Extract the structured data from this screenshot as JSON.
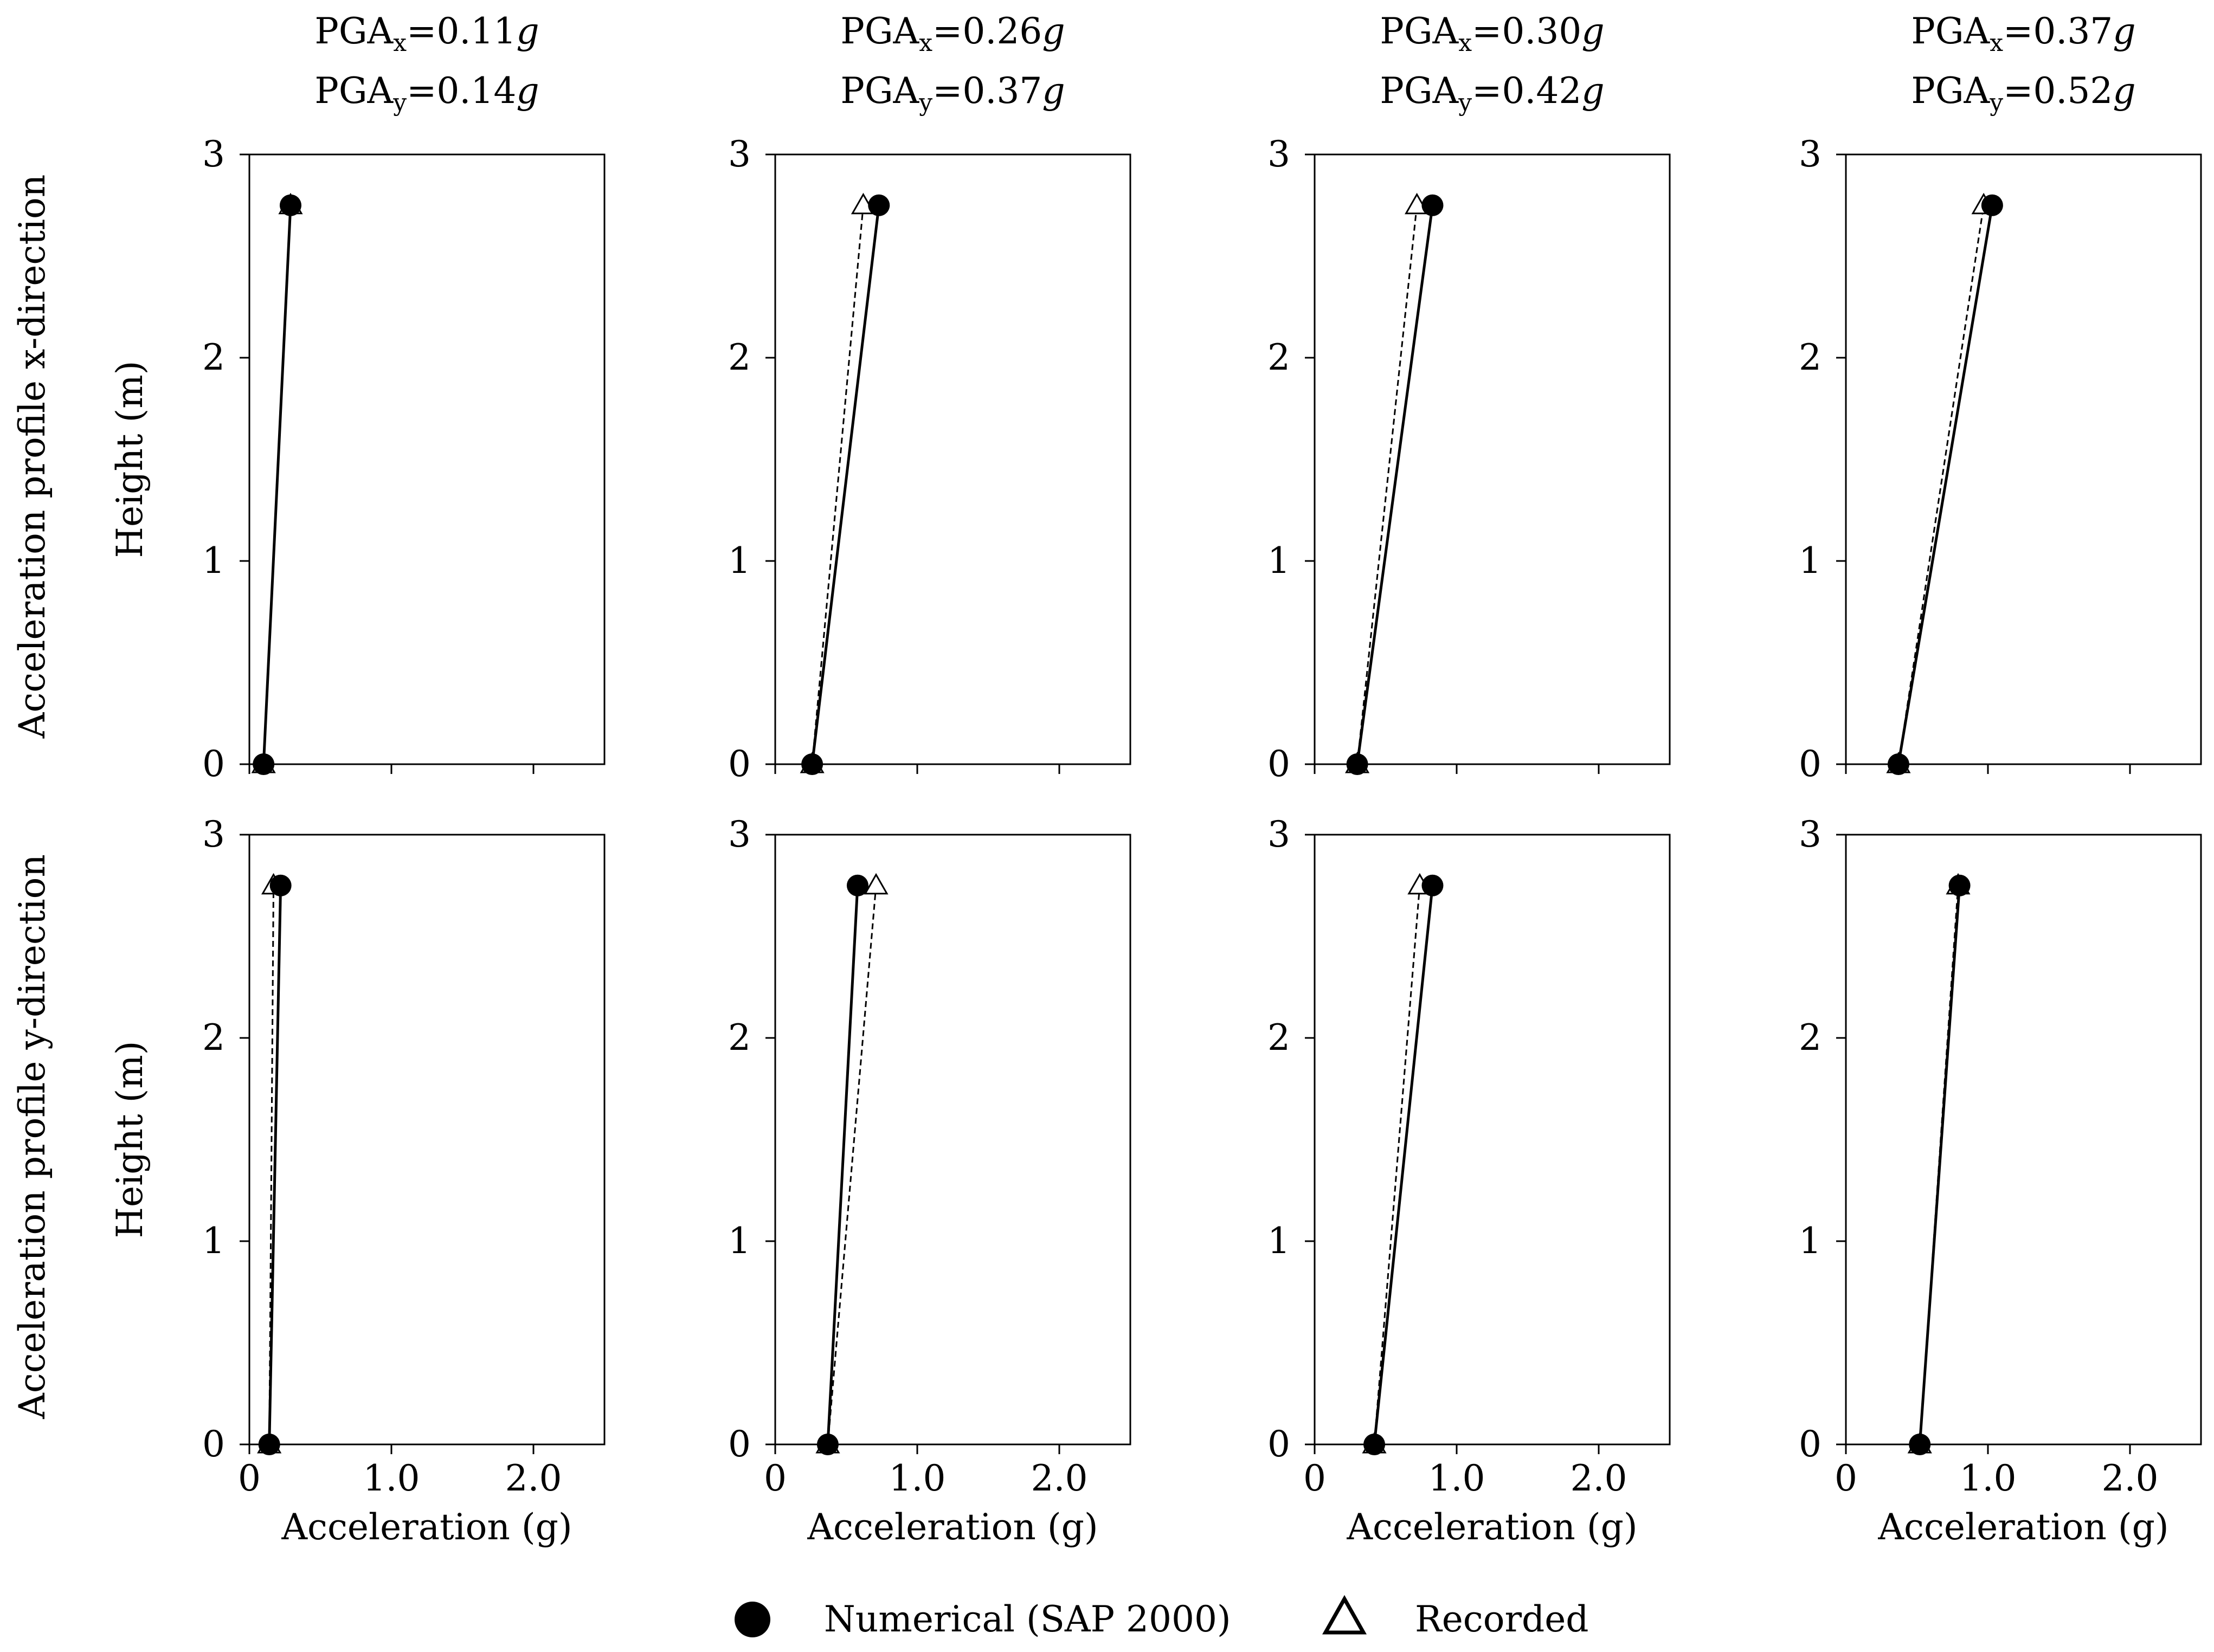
{
  "figure": {
    "row_labels": [
      "Acceleration profile x-direction",
      "Acceleration profile y-direction"
    ],
    "legend": [
      {
        "name": "Numerical (SAP 2000)",
        "marker": "filled-circle",
        "line": "solid"
      },
      {
        "name": "Recorded",
        "marker": "hollow-triangle",
        "line": "dashed"
      }
    ],
    "colors": {
      "ink": "#000000",
      "background": "#ffffff"
    }
  },
  "chart_data": [
    {
      "type": "line",
      "panel": "row1-col1",
      "title_lines": [
        "PGA",
        "x",
        "=0.11",
        "g",
        "PGA",
        "y",
        "=0.14",
        "g"
      ],
      "xlabel": "",
      "ylabel": "Height (m)",
      "xlim": [
        0,
        2.5
      ],
      "ylim": [
        0,
        3
      ],
      "xticks": [
        0,
        1.0,
        2.0
      ],
      "xtick_labels": [],
      "yticks": [
        0,
        1,
        2,
        3
      ],
      "ytick_labels": [
        "0",
        "1",
        "2",
        "3"
      ],
      "series": [
        {
          "name": "Numerical (SAP 2000)",
          "x": [
            0.1,
            0.29
          ],
          "y": [
            0,
            2.75
          ]
        },
        {
          "name": "Recorded",
          "x": [
            0.1,
            0.29
          ],
          "y": [
            0,
            2.75
          ]
        }
      ]
    },
    {
      "type": "line",
      "panel": "row1-col2",
      "title_lines": [
        "PGA",
        "x",
        "=0.26",
        "g",
        "PGA",
        "y",
        "=0.37",
        "g"
      ],
      "xlabel": "",
      "ylabel": "",
      "xlim": [
        0,
        2.5
      ],
      "ylim": [
        0,
        3
      ],
      "xticks": [
        0,
        1.0,
        2.0
      ],
      "xtick_labels": [],
      "yticks": [
        0,
        1,
        2,
        3
      ],
      "ytick_labels": [
        "0",
        "1",
        "2",
        "3"
      ],
      "series": [
        {
          "name": "Numerical (SAP 2000)",
          "x": [
            0.26,
            0.73
          ],
          "y": [
            0,
            2.75
          ]
        },
        {
          "name": "Recorded",
          "x": [
            0.26,
            0.62
          ],
          "y": [
            0,
            2.75
          ]
        }
      ]
    },
    {
      "type": "line",
      "panel": "row1-col3",
      "title_lines": [
        "PGA",
        "x",
        "=0.30",
        "g",
        "PGA",
        "y",
        "=0.42",
        "g"
      ],
      "xlabel": "",
      "ylabel": "",
      "xlim": [
        0,
        2.5
      ],
      "ylim": [
        0,
        3
      ],
      "xticks": [
        0,
        1.0,
        2.0
      ],
      "xtick_labels": [],
      "yticks": [
        0,
        1,
        2,
        3
      ],
      "ytick_labels": [
        "0",
        "1",
        "2",
        "3"
      ],
      "series": [
        {
          "name": "Numerical (SAP 2000)",
          "x": [
            0.3,
            0.83
          ],
          "y": [
            0,
            2.75
          ]
        },
        {
          "name": "Recorded",
          "x": [
            0.3,
            0.72
          ],
          "y": [
            0,
            2.75
          ]
        }
      ]
    },
    {
      "type": "line",
      "panel": "row1-col4",
      "title_lines": [
        "PGA",
        "x",
        "=0.37",
        "g",
        "PGA",
        "y",
        "=0.52",
        "g"
      ],
      "xlabel": "",
      "ylabel": "",
      "xlim": [
        0,
        2.5
      ],
      "ylim": [
        0,
        3
      ],
      "xticks": [
        0,
        1.0,
        2.0
      ],
      "xtick_labels": [],
      "yticks": [
        0,
        1,
        2,
        3
      ],
      "ytick_labels": [
        "0",
        "1",
        "2",
        "3"
      ],
      "series": [
        {
          "name": "Numerical (SAP 2000)",
          "x": [
            0.37,
            1.03
          ],
          "y": [
            0,
            2.75
          ]
        },
        {
          "name": "Recorded",
          "x": [
            0.37,
            0.97
          ],
          "y": [
            0,
            2.75
          ]
        }
      ]
    },
    {
      "type": "line",
      "panel": "row2-col1",
      "title_lines": [],
      "xlabel": "Acceleration (g)",
      "ylabel": "Height (m)",
      "xlim": [
        0,
        2.5
      ],
      "ylim": [
        0,
        3
      ],
      "xticks": [
        0,
        1.0,
        2.0
      ],
      "xtick_labels": [
        "0",
        "1.0",
        "2.0"
      ],
      "yticks": [
        0,
        1,
        2,
        3
      ],
      "ytick_labels": [
        "0",
        "1",
        "2",
        "3"
      ],
      "series": [
        {
          "name": "Numerical (SAP 2000)",
          "x": [
            0.14,
            0.22
          ],
          "y": [
            0,
            2.75
          ]
        },
        {
          "name": "Recorded",
          "x": [
            0.14,
            0.17
          ],
          "y": [
            0,
            2.75
          ]
        }
      ]
    },
    {
      "type": "line",
      "panel": "row2-col2",
      "title_lines": [],
      "xlabel": "Acceleration (g)",
      "ylabel": "",
      "xlim": [
        0,
        2.5
      ],
      "ylim": [
        0,
        3
      ],
      "xticks": [
        0,
        1.0,
        2.0
      ],
      "xtick_labels": [
        "0",
        "1.0",
        "2.0"
      ],
      "yticks": [
        0,
        1,
        2,
        3
      ],
      "ytick_labels": [
        "0",
        "1",
        "2",
        "3"
      ],
      "series": [
        {
          "name": "Numerical (SAP 2000)",
          "x": [
            0.37,
            0.58
          ],
          "y": [
            0,
            2.75
          ]
        },
        {
          "name": "Recorded",
          "x": [
            0.37,
            0.71
          ],
          "y": [
            0,
            2.75
          ]
        }
      ]
    },
    {
      "type": "line",
      "panel": "row2-col3",
      "title_lines": [],
      "xlabel": "Acceleration (g)",
      "ylabel": "",
      "xlim": [
        0,
        2.5
      ],
      "ylim": [
        0,
        3
      ],
      "xticks": [
        0,
        1.0,
        2.0
      ],
      "xtick_labels": [
        "0",
        "1.0",
        "2.0"
      ],
      "yticks": [
        0,
        1,
        2,
        3
      ],
      "ytick_labels": [
        "0",
        "1",
        "2",
        "3"
      ],
      "series": [
        {
          "name": "Numerical (SAP 2000)",
          "x": [
            0.42,
            0.83
          ],
          "y": [
            0,
            2.75
          ]
        },
        {
          "name": "Recorded",
          "x": [
            0.42,
            0.74
          ],
          "y": [
            0,
            2.75
          ]
        }
      ]
    },
    {
      "type": "line",
      "panel": "row2-col4",
      "title_lines": [],
      "xlabel": "Acceleration (g)",
      "ylabel": "",
      "xlim": [
        0,
        2.5
      ],
      "ylim": [
        0,
        3
      ],
      "xticks": [
        0,
        1.0,
        2.0
      ],
      "xtick_labels": [
        "0",
        "1.0",
        "2.0"
      ],
      "yticks": [
        0,
        1,
        2,
        3
      ],
      "ytick_labels": [
        "0",
        "1",
        "2",
        "3"
      ],
      "series": [
        {
          "name": "Numerical (SAP 2000)",
          "x": [
            0.52,
            0.8
          ],
          "y": [
            0,
            2.75
          ]
        },
        {
          "name": "Recorded",
          "x": [
            0.52,
            0.79
          ],
          "y": [
            0,
            2.75
          ]
        }
      ]
    }
  ]
}
